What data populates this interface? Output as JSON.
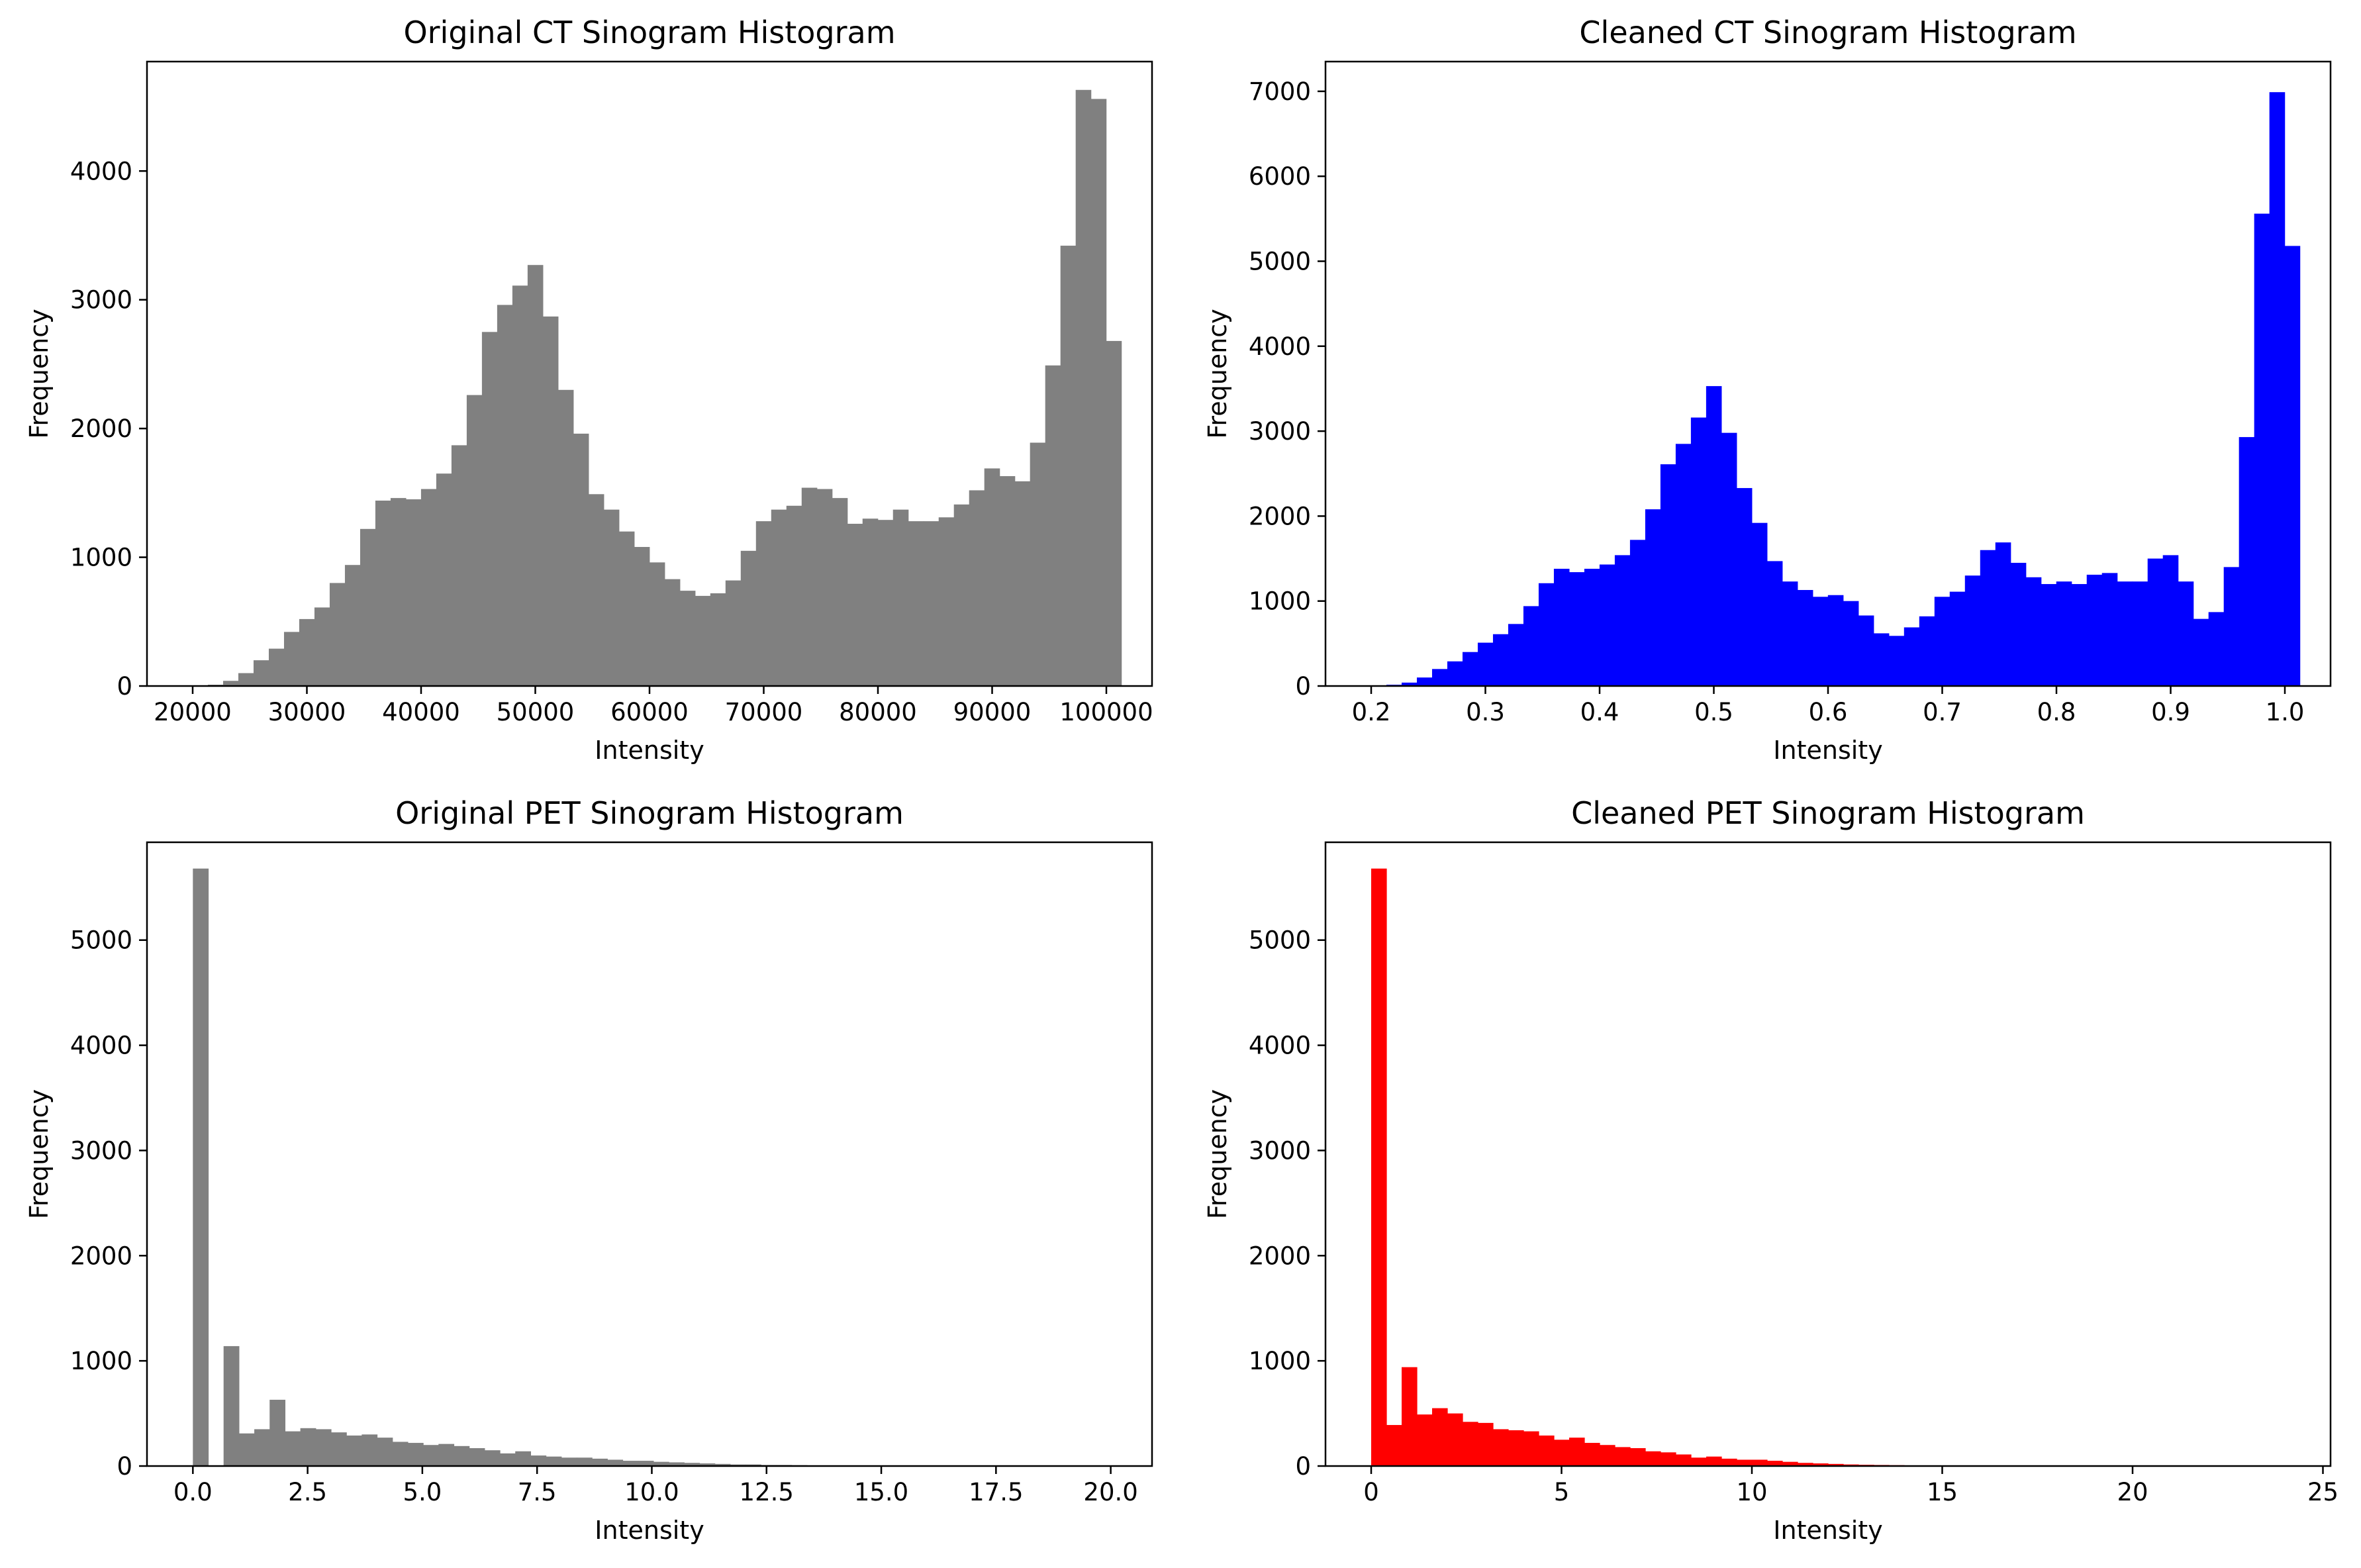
{
  "chart_data": [
    {
      "type": "bar",
      "id": "ct-original",
      "title": "Original CT Sinogram Histogram",
      "xlabel": "Intensity",
      "ylabel": "Frequency",
      "color": "#808080",
      "xlim": [
        16000,
        104000
      ],
      "ylim": [
        0,
        4850
      ],
      "bin_start": 20000,
      "bin_width": 1333,
      "values": [
        5,
        10,
        40,
        100,
        200,
        290,
        420,
        520,
        610,
        800,
        940,
        1220,
        1440,
        1460,
        1450,
        1530,
        1650,
        1870,
        2260,
        2750,
        2960,
        3110,
        3270,
        2870,
        2300,
        1960,
        1490,
        1370,
        1200,
        1080,
        960,
        830,
        740,
        700,
        720,
        820,
        1050,
        1280,
        1370,
        1400,
        1540,
        1530,
        1460,
        1260,
        1300,
        1290,
        1370,
        1280,
        1280,
        1310,
        1410,
        1520,
        1690,
        1630,
        1590,
        1890,
        2490,
        3420,
        4630,
        4560,
        2680
      ],
      "xticks": [
        20000,
        30000,
        40000,
        50000,
        60000,
        70000,
        80000,
        90000,
        100000
      ],
      "xtick_labels": [
        "20000",
        "30000",
        "40000",
        "50000",
        "60000",
        "70000",
        "80000",
        "90000",
        "100000"
      ],
      "yticks": [
        0,
        1000,
        2000,
        3000,
        4000
      ],
      "ytick_labels": [
        "0",
        "1000",
        "2000",
        "3000",
        "4000"
      ]
    },
    {
      "type": "bar",
      "id": "ct-cleaned",
      "title": "Cleaned CT Sinogram Histogram",
      "xlabel": "Intensity",
      "ylabel": "Frequency",
      "color": "#0000ff",
      "xlim": [
        0.16,
        1.04
      ],
      "ylim": [
        0,
        7350
      ],
      "bin_start": 0.2,
      "bin_width": 0.01333,
      "values": [
        5,
        15,
        40,
        100,
        200,
        290,
        400,
        510,
        610,
        730,
        940,
        1210,
        1380,
        1340,
        1380,
        1430,
        1540,
        1720,
        2080,
        2610,
        2850,
        3160,
        3530,
        2980,
        2330,
        1920,
        1470,
        1230,
        1130,
        1050,
        1070,
        1000,
        830,
        620,
        590,
        690,
        820,
        1050,
        1110,
        1300,
        1600,
        1690,
        1450,
        1280,
        1200,
        1230,
        1200,
        1310,
        1330,
        1230,
        1230,
        1500,
        1540,
        1230,
        790,
        870,
        1400,
        2930,
        5560,
        6990,
        5180
      ],
      "xticks": [
        0.2,
        0.3,
        0.4,
        0.5,
        0.6,
        0.7,
        0.8,
        0.9,
        1.0
      ],
      "xtick_labels": [
        "0.2",
        "0.3",
        "0.4",
        "0.5",
        "0.6",
        "0.7",
        "0.8",
        "0.9",
        "1.0"
      ],
      "yticks": [
        0,
        1000,
        2000,
        3000,
        4000,
        5000,
        6000,
        7000
      ],
      "ytick_labels": [
        "0",
        "1000",
        "2000",
        "3000",
        "4000",
        "5000",
        "6000",
        "7000"
      ]
    },
    {
      "type": "bar",
      "id": "pet-original",
      "title": "Original PET Sinogram Histogram",
      "xlabel": "Intensity",
      "ylabel": "Frequency",
      "color": "#808080",
      "xlim": [
        -1.0,
        20.9
      ],
      "ylim": [
        0,
        5930
      ],
      "bin_start": 0,
      "bin_width": 0.3345,
      "values": [
        5680,
        0,
        1140,
        310,
        350,
        630,
        330,
        360,
        350,
        320,
        290,
        300,
        270,
        230,
        220,
        200,
        210,
        190,
        170,
        150,
        120,
        140,
        100,
        90,
        80,
        80,
        70,
        60,
        50,
        50,
        40,
        35,
        30,
        25,
        20,
        15,
        15,
        10,
        10,
        8,
        6,
        5,
        4,
        3,
        3,
        2,
        2,
        2,
        1,
        1,
        1,
        1,
        1,
        1,
        1,
        1,
        1,
        0,
        0,
        0
      ],
      "xticks": [
        0,
        2.5,
        5,
        7.5,
        10,
        12.5,
        15,
        17.5,
        20
      ],
      "xtick_labels": [
        "0.0",
        "2.5",
        "5.0",
        "7.5",
        "10.0",
        "12.5",
        "15.0",
        "17.5",
        "20.0"
      ],
      "yticks": [
        0,
        1000,
        2000,
        3000,
        4000,
        5000
      ],
      "ytick_labels": [
        "0",
        "1000",
        "2000",
        "3000",
        "4000",
        "5000"
      ]
    },
    {
      "type": "bar",
      "id": "pet-cleaned",
      "title": "Cleaned PET Sinogram Histogram",
      "xlabel": "Intensity",
      "ylabel": "Frequency",
      "color": "#ff0000",
      "xlim": [
        -1.2,
        25.2
      ],
      "ylim": [
        0,
        5930
      ],
      "bin_start": 0,
      "bin_width": 0.4,
      "values": [
        5680,
        390,
        940,
        490,
        550,
        500,
        420,
        410,
        350,
        340,
        330,
        290,
        250,
        270,
        220,
        200,
        180,
        170,
        140,
        130,
        110,
        80,
        90,
        70,
        60,
        60,
        50,
        40,
        30,
        25,
        20,
        15,
        12,
        10,
        8,
        5,
        4,
        3,
        3,
        2,
        2,
        2,
        1,
        1,
        1,
        1,
        1,
        1,
        1,
        1,
        1,
        1,
        1,
        1,
        1,
        1,
        1,
        1,
        1,
        1
      ],
      "xticks": [
        0,
        5,
        10,
        15,
        20,
        25
      ],
      "xtick_labels": [
        "0",
        "5",
        "10",
        "15",
        "20",
        "25"
      ],
      "yticks": [
        0,
        1000,
        2000,
        3000,
        4000,
        5000
      ],
      "ytick_labels": [
        "0",
        "1000",
        "2000",
        "3000",
        "4000",
        "5000"
      ]
    }
  ]
}
